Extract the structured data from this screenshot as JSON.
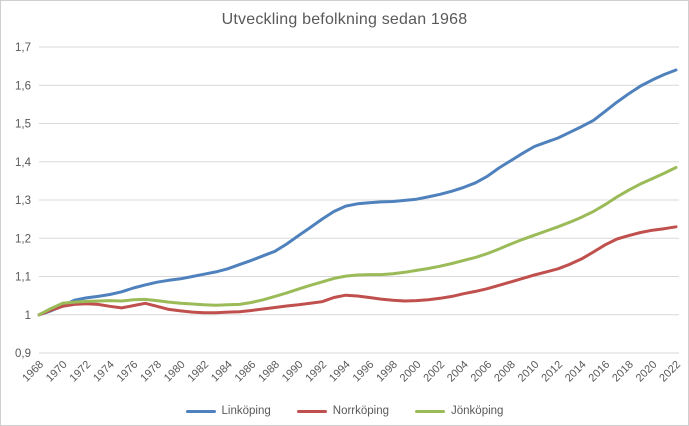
{
  "chart_data": {
    "type": "line",
    "title": "Utveckling befolkning sedan 1968",
    "xlabel": "",
    "ylabel": "",
    "xlim": [
      1968,
      2022
    ],
    "ylim": [
      0.9,
      1.7
    ],
    "grid": "horizontal",
    "legend_position": "bottom",
    "decimal_separator": ",",
    "x": [
      1968,
      1969,
      1970,
      1971,
      1972,
      1973,
      1974,
      1975,
      1976,
      1977,
      1978,
      1979,
      1980,
      1981,
      1982,
      1983,
      1984,
      1985,
      1986,
      1987,
      1988,
      1989,
      1990,
      1991,
      1992,
      1993,
      1994,
      1995,
      1996,
      1997,
      1998,
      1999,
      2000,
      2001,
      2002,
      2003,
      2004,
      2005,
      2006,
      2007,
      2008,
      2009,
      2010,
      2011,
      2012,
      2013,
      2014,
      2015,
      2016,
      2017,
      2018,
      2019,
      2020,
      2021,
      2022
    ],
    "x_tick_labels": [
      "1968",
      "1970",
      "1972",
      "1974",
      "1976",
      "1978",
      "1980",
      "1982",
      "1984",
      "1986",
      "1988",
      "1990",
      "1992",
      "1994",
      "1996",
      "1998",
      "2000",
      "2002",
      "2004",
      "2006",
      "2008",
      "2010",
      "2012",
      "2014",
      "2016",
      "2018",
      "2020",
      "2022"
    ],
    "x_tick_years": [
      1968,
      1970,
      1972,
      1974,
      1976,
      1978,
      1980,
      1982,
      1984,
      1986,
      1988,
      1990,
      1992,
      1994,
      1996,
      1998,
      2000,
      2002,
      2004,
      2006,
      2008,
      2010,
      2012,
      2014,
      2016,
      2018,
      2020,
      2022
    ],
    "y_tick_labels": [
      "0,9",
      "1",
      "1,1",
      "1,2",
      "1,3",
      "1,4",
      "1,5",
      "1,6",
      "1,7"
    ],
    "y_tick_values": [
      0.9,
      1.0,
      1.1,
      1.2,
      1.3,
      1.4,
      1.5,
      1.6,
      1.7
    ],
    "series": [
      {
        "name": "Linköping",
        "color": "#4F81BD",
        "values": [
          1.0,
          1.01,
          1.023,
          1.038,
          1.044,
          1.048,
          1.053,
          1.06,
          1.07,
          1.078,
          1.085,
          1.09,
          1.094,
          1.1,
          1.106,
          1.112,
          1.12,
          1.131,
          1.142,
          1.154,
          1.166,
          1.185,
          1.207,
          1.228,
          1.25,
          1.27,
          1.284,
          1.29,
          1.293,
          1.295,
          1.296,
          1.299,
          1.302,
          1.308,
          1.315,
          1.323,
          1.333,
          1.345,
          1.362,
          1.384,
          1.403,
          1.422,
          1.44,
          1.451,
          1.462,
          1.477,
          1.492,
          1.508,
          1.532,
          1.556,
          1.578,
          1.598,
          1.614,
          1.628,
          1.64
        ]
      },
      {
        "name": "Norrköping",
        "color": "#C0504D",
        "values": [
          1.0,
          1.012,
          1.022,
          1.027,
          1.029,
          1.027,
          1.022,
          1.018,
          1.024,
          1.03,
          1.022,
          1.014,
          1.01,
          1.007,
          1.005,
          1.005,
          1.007,
          1.008,
          1.011,
          1.015,
          1.019,
          1.023,
          1.026,
          1.03,
          1.034,
          1.045,
          1.051,
          1.049,
          1.045,
          1.041,
          1.038,
          1.036,
          1.037,
          1.039,
          1.043,
          1.048,
          1.055,
          1.061,
          1.068,
          1.077,
          1.086,
          1.095,
          1.104,
          1.112,
          1.12,
          1.132,
          1.146,
          1.164,
          1.183,
          1.198,
          1.207,
          1.215,
          1.221,
          1.225,
          1.23
        ]
      },
      {
        "name": "Jönköping",
        "color": "#9BBB59",
        "values": [
          1.0,
          1.016,
          1.03,
          1.033,
          1.035,
          1.036,
          1.037,
          1.036,
          1.039,
          1.04,
          1.037,
          1.033,
          1.03,
          1.028,
          1.026,
          1.025,
          1.026,
          1.027,
          1.032,
          1.039,
          1.048,
          1.057,
          1.067,
          1.077,
          1.086,
          1.095,
          1.101,
          1.104,
          1.105,
          1.105,
          1.107,
          1.111,
          1.116,
          1.121,
          1.127,
          1.134,
          1.142,
          1.15,
          1.16,
          1.172,
          1.185,
          1.197,
          1.208,
          1.219,
          1.23,
          1.242,
          1.255,
          1.27,
          1.288,
          1.308,
          1.326,
          1.342,
          1.356,
          1.37,
          1.385
        ]
      }
    ],
    "colors": {
      "grid": "#D9D9D9",
      "axis_text": "#595959",
      "title_text": "#595959",
      "background": "#FFFFFF",
      "border": "#CFCFCF"
    }
  }
}
